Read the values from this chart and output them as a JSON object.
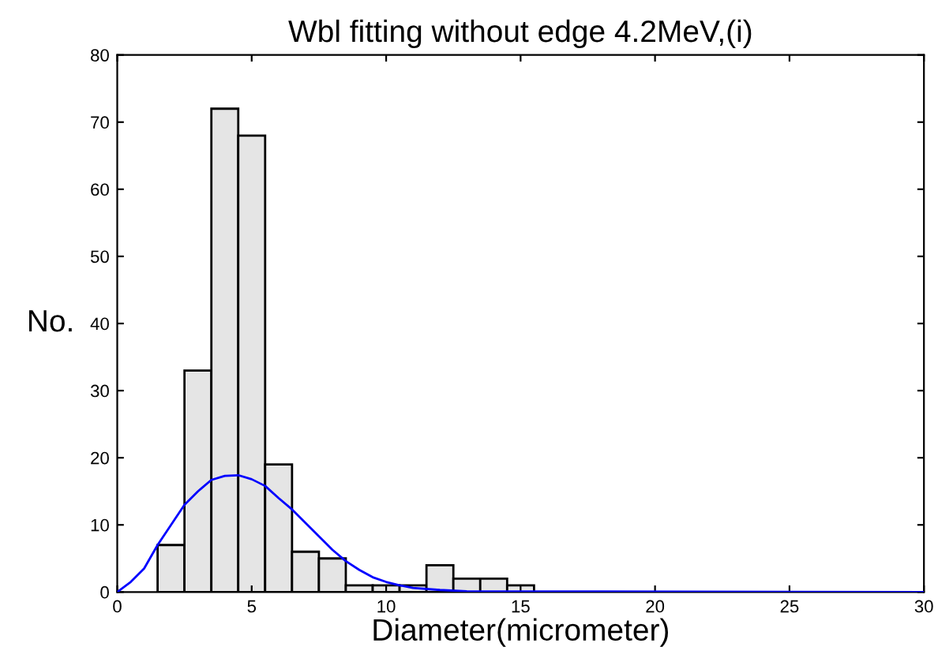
{
  "chart_data": {
    "type": "histogram",
    "title": "Wbl fitting without edge 4.2MeV,(i)",
    "xlabel": "Diameter(micrometer)",
    "ylabel": "No.",
    "xlim": [
      0,
      30
    ],
    "xticks": [
      0,
      5,
      10,
      15,
      20,
      25,
      30
    ],
    "ylim": [
      0,
      80
    ],
    "yticks": [
      0,
      10,
      20,
      30,
      40,
      50,
      60,
      70,
      80
    ],
    "grid": false,
    "series": [
      {
        "color": "#e5e5e5",
        "bins": [
          1.5,
          2.5,
          3.5,
          4.5,
          5.5,
          6.5,
          7.5,
          8.5,
          9.5,
          10.5,
          11.5,
          12.5,
          13.5,
          14.5,
          15.5
        ],
        "values": [
          7,
          33,
          72,
          68,
          19,
          6,
          5,
          1,
          1,
          1,
          4,
          2,
          2,
          1
        ]
      },
      {
        "type": "line",
        "color": "#0000ff",
        "x": [
          0,
          0.5,
          1,
          1.5,
          2,
          2.5,
          3,
          3.5,
          4,
          4.5,
          5,
          5.5,
          6,
          6.5,
          7,
          7.5,
          8,
          8.5,
          9,
          9.5,
          10,
          10.5,
          11,
          12,
          13,
          30
        ],
        "values": [
          0,
          1.5,
          3.5,
          7,
          10,
          13,
          15,
          16.7,
          17.3,
          17.4,
          16.8,
          15.8,
          14,
          12.3,
          10.3,
          8.3,
          6.3,
          4.6,
          3.3,
          2.2,
          1.5,
          1,
          0.6,
          0.3,
          0.1,
          0
        ]
      }
    ]
  }
}
